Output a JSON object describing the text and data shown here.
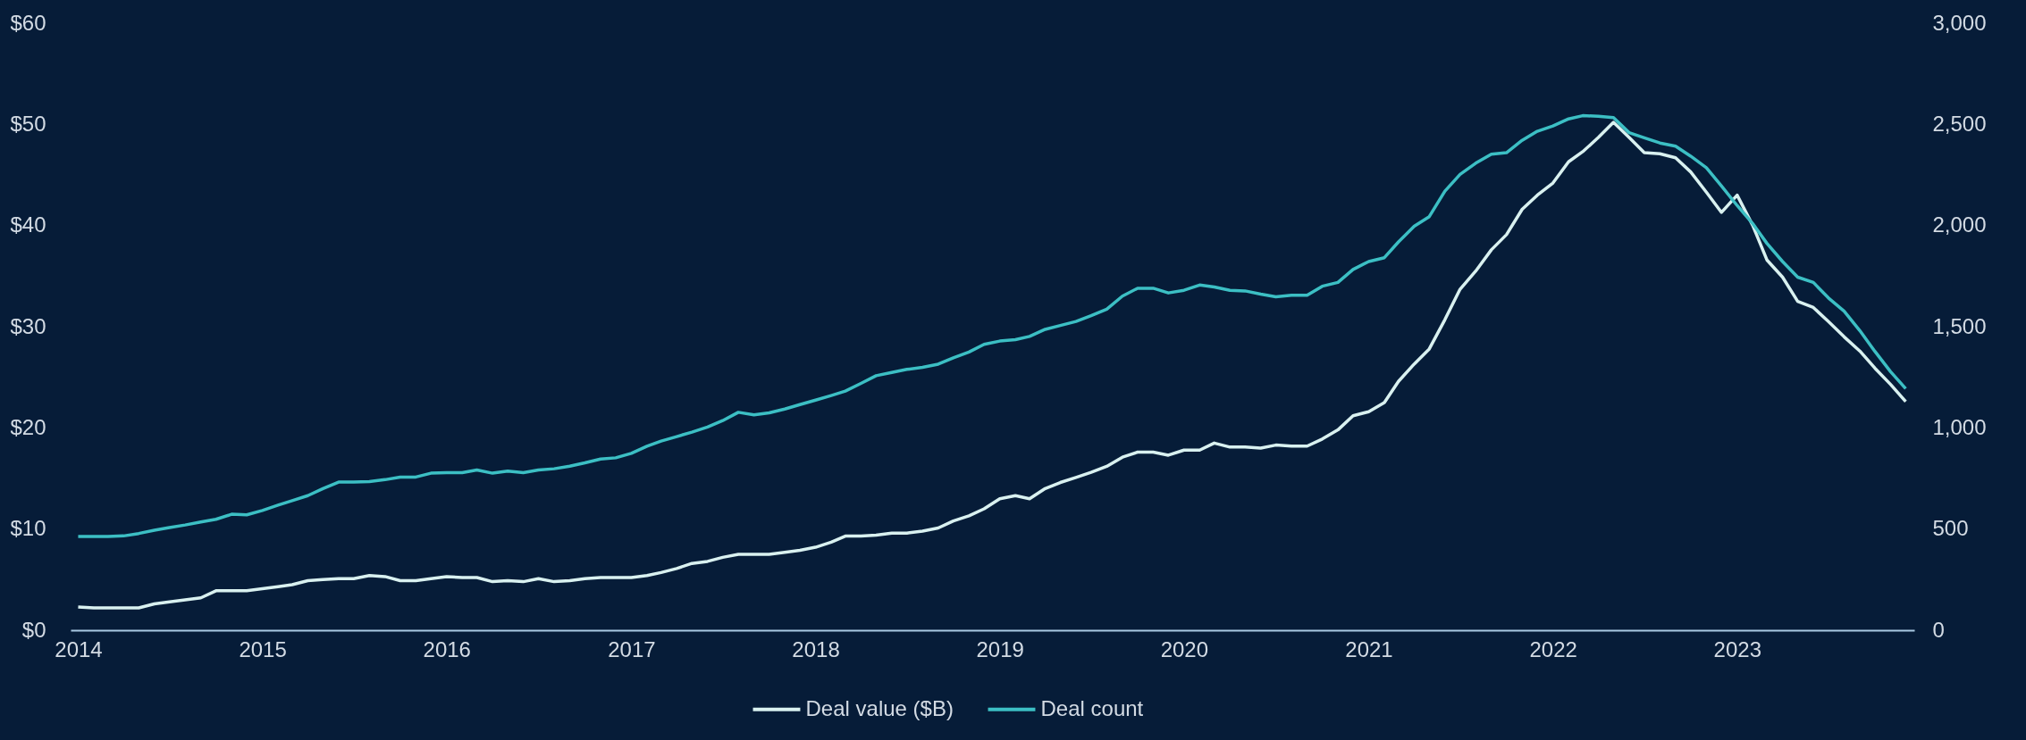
{
  "chart_data": {
    "type": "line",
    "x": [
      "2014-01",
      "2014-02",
      "2014-03",
      "2014-04",
      "2014-05",
      "2014-06",
      "2014-07",
      "2014-08",
      "2014-09",
      "2014-10",
      "2014-11",
      "2014-12",
      "2015-01",
      "2015-02",
      "2015-03",
      "2015-04",
      "2015-05",
      "2015-06",
      "2015-07",
      "2015-08",
      "2015-09",
      "2015-10",
      "2015-11",
      "2015-12",
      "2016-01",
      "2016-02",
      "2016-03",
      "2016-04",
      "2016-05",
      "2016-06",
      "2016-07",
      "2016-08",
      "2016-09",
      "2016-10",
      "2016-11",
      "2016-12",
      "2017-01",
      "2017-02",
      "2017-03",
      "2017-04",
      "2017-05",
      "2017-06",
      "2017-07",
      "2017-08",
      "2017-09",
      "2017-10",
      "2017-11",
      "2017-12",
      "2018-01",
      "2018-02",
      "2018-03",
      "2018-04",
      "2018-05",
      "2018-06",
      "2018-07",
      "2018-08",
      "2018-09",
      "2018-10",
      "2018-11",
      "2018-12",
      "2019-01",
      "2019-02",
      "2019-03",
      "2019-04",
      "2019-05",
      "2019-06",
      "2019-07",
      "2019-08",
      "2019-09",
      "2019-10",
      "2019-11",
      "2019-12",
      "2020-01",
      "2020-02",
      "2020-03",
      "2020-04",
      "2020-05",
      "2020-06",
      "2020-07",
      "2020-08",
      "2020-09",
      "2020-10",
      "2020-11",
      "2020-12",
      "2021-01",
      "2021-02",
      "2021-03",
      "2021-04",
      "2021-05",
      "2021-06",
      "2021-07",
      "2021-08",
      "2021-09",
      "2021-10",
      "2021-11",
      "2021-12",
      "2022-01",
      "2022-02",
      "2022-03",
      "2022-04",
      "2022-05",
      "2022-06",
      "2022-07",
      "2022-08",
      "2022-09",
      "2022-10",
      "2022-11",
      "2022-12",
      "2023-01",
      "2023-02",
      "2023-03",
      "2023-04",
      "2023-05",
      "2023-06",
      "2023-07",
      "2023-08",
      "2023-09",
      "2023-10",
      "2023-11",
      "2023-12"
    ],
    "series": [
      {
        "name": "Deal value ($B)",
        "color": "#d9f1f0",
        "values": [
          2.3,
          2.2,
          2.2,
          2.2,
          2.2,
          2.6,
          2.8,
          3.0,
          3.2,
          3.9,
          3.9,
          3.9,
          4.1,
          4.3,
          4.5,
          4.9,
          5.0,
          5.1,
          5.1,
          5.4,
          5.3,
          4.9,
          4.9,
          5.1,
          5.3,
          5.2,
          5.2,
          4.8,
          4.9,
          4.8,
          5.1,
          4.8,
          4.9,
          5.1,
          5.2,
          5.2,
          5.2,
          5.4,
          5.7,
          6.1,
          6.6,
          6.8,
          7.2,
          7.5,
          7.5,
          7.5,
          7.7,
          7.9,
          8.2,
          8.7,
          9.3,
          9.3,
          9.4,
          9.6,
          9.6,
          9.8,
          10.1,
          10.8,
          11.3,
          12.0,
          13.0,
          13.3,
          13.0,
          14.0,
          14.6,
          15.1,
          15.6,
          16.2,
          17.1,
          17.6,
          17.6,
          17.3,
          17.8,
          17.8,
          18.5,
          18.1,
          18.1,
          18.0,
          18.3,
          18.2,
          18.2,
          18.9,
          19.8,
          21.2,
          21.6,
          22.5,
          24.6,
          26.3,
          27.8,
          30.7,
          33.7,
          35.5,
          37.6,
          39.1,
          41.6,
          43.0,
          44.2,
          46.3,
          47.3,
          48.7,
          50.2,
          48.7,
          47.2,
          47.1,
          46.7,
          45.3,
          43.3,
          41.3,
          43.0,
          40.0,
          36.6,
          34.9,
          32.5,
          31.9,
          30.5,
          29.0,
          27.6,
          25.9,
          24.3,
          22.6
        ]
      },
      {
        "name": "Deal count",
        "color": "#3cbfc4",
        "axis": "y2",
        "values": [
          463,
          463,
          463,
          466,
          478,
          494,
          507,
          520,
          535,
          548,
          573,
          570,
          592,
          618,
          640,
          665,
          700,
          732,
          732,
          735,
          744,
          757,
          757,
          776,
          779,
          779,
          792,
          776,
          786,
          779,
          792,
          798,
          811,
          827,
          846,
          852,
          874,
          909,
          935,
          957,
          979,
          1004,
          1036,
          1077,
          1064,
          1074,
          1093,
          1115,
          1137,
          1160,
          1182,
          1220,
          1258,
          1274,
          1289,
          1299,
          1315,
          1346,
          1375,
          1413,
          1429,
          1436,
          1452,
          1487,
          1506,
          1526,
          1555,
          1587,
          1651,
          1690,
          1690,
          1667,
          1680,
          1706,
          1696,
          1680,
          1677,
          1661,
          1648,
          1655,
          1655,
          1700,
          1719,
          1783,
          1822,
          1841,
          1919,
          1996,
          2044,
          2170,
          2253,
          2308,
          2353,
          2360,
          2421,
          2466,
          2492,
          2527,
          2543,
          2540,
          2533,
          2459,
          2434,
          2408,
          2392,
          2343,
          2286,
          2195,
          2099,
          2009,
          1912,
          1822,
          1745,
          1719,
          1642,
          1577,
          1481,
          1378,
          1278,
          1194
        ]
      }
    ],
    "xlim": [
      "2013-12-17",
      "2023-12-18"
    ],
    "xticks": [
      "2014",
      "2015",
      "2016",
      "2017",
      "2018",
      "2019",
      "2020",
      "2021",
      "2022",
      "2023"
    ],
    "ylim": [
      0,
      60
    ],
    "yticks": [
      {
        "value": 0,
        "label": "$0"
      },
      {
        "value": 10,
        "label": "$10"
      },
      {
        "value": 20,
        "label": "$20"
      },
      {
        "value": 30,
        "label": "$30"
      },
      {
        "value": 40,
        "label": "$40"
      },
      {
        "value": 50,
        "label": "$50"
      },
      {
        "value": 60,
        "label": "$60"
      }
    ],
    "y2lim": [
      0,
      3000
    ],
    "y2ticks": [
      {
        "value": 0,
        "label": "0"
      },
      {
        "value": 500,
        "label": "500"
      },
      {
        "value": 1000,
        "label": "1,000"
      },
      {
        "value": 1500,
        "label": "1,500"
      },
      {
        "value": 2000,
        "label": "2,000"
      },
      {
        "value": 2500,
        "label": "2,500"
      },
      {
        "value": 3000,
        "label": "3,000"
      }
    ],
    "grid": false,
    "legend": "bottom",
    "marker": "none",
    "line_style": "solid"
  }
}
